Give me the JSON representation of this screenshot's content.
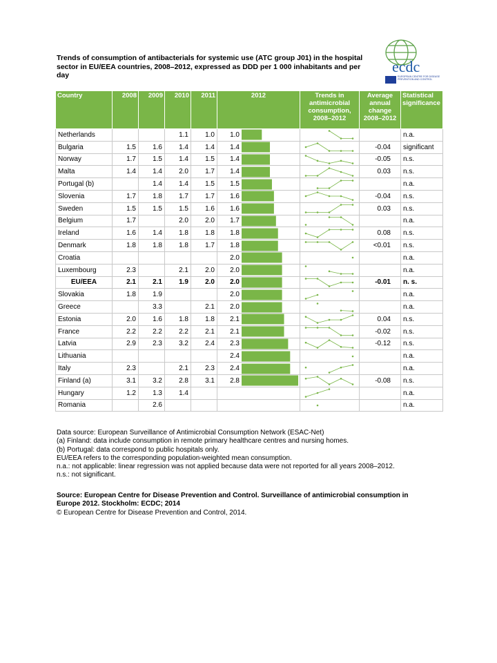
{
  "header": {
    "title": "Trends of consumption of antibacterials for systemic use (ATC group J01) in the hospital sector in EU/EEA countries, 2008–2012, expressed as DDD per 1 000 inhabitants and per day",
    "logo": {
      "name": "ecdc",
      "subtitle": "EUROPEAN CENTRE FOR DISEASE PREVENTION AND CONTROL"
    }
  },
  "table": {
    "columns": [
      "Country",
      "2008",
      "2009",
      "2010",
      "2011",
      "2012",
      "Trends in antimicrobial consumption, 2008–2012",
      "Average annual change 2008–2012",
      "Statistical significance"
    ],
    "rows": [
      {
        "country": "Netherlands",
        "values": [
          null,
          null,
          "1.1",
          "1.0",
          "1.0"
        ],
        "change": null,
        "significance": "n.a."
      },
      {
        "country": "Bulgaria",
        "values": [
          "1.5",
          "1.6",
          "1.4",
          "1.4",
          "1.4"
        ],
        "change": "-0.04",
        "significance": "significant"
      },
      {
        "country": "Norway",
        "values": [
          "1.7",
          "1.5",
          "1.4",
          "1.5",
          "1.4"
        ],
        "change": "-0.05",
        "significance": "n.s."
      },
      {
        "country": "Malta",
        "values": [
          "1.4",
          "1.4",
          "2.0",
          "1.7",
          "1.4"
        ],
        "change": "0.03",
        "significance": "n.s."
      },
      {
        "country": "Portugal (b)",
        "values": [
          null,
          "1.4",
          "1.4",
          "1.5",
          "1.5"
        ],
        "change": null,
        "significance": "n.a."
      },
      {
        "country": "Slovenia",
        "values": [
          "1.7",
          "1.8",
          "1.7",
          "1.7",
          "1.6"
        ],
        "change": "-0.04",
        "significance": "n.s."
      },
      {
        "country": "Sweden",
        "values": [
          "1.5",
          "1.5",
          "1.5",
          "1.6",
          "1.6"
        ],
        "change": "0.03",
        "significance": "n.s."
      },
      {
        "country": "Belgium",
        "values": [
          "1.7",
          null,
          "2.0",
          "2.0",
          "1.7"
        ],
        "change": null,
        "significance": "n.a."
      },
      {
        "country": "Ireland",
        "values": [
          "1.6",
          "1.4",
          "1.8",
          "1.8",
          "1.8"
        ],
        "change": "0.08",
        "significance": "n.s."
      },
      {
        "country": "Denmark",
        "values": [
          "1.8",
          "1.8",
          "1.8",
          "1.7",
          "1.8"
        ],
        "change": "<0.01",
        "significance": "n.s."
      },
      {
        "country": "Croatia",
        "values": [
          null,
          null,
          null,
          null,
          "2.0"
        ],
        "change": null,
        "significance": "n.a."
      },
      {
        "country": "Luxembourg",
        "values": [
          "2.3",
          null,
          "2.1",
          "2.0",
          "2.0"
        ],
        "change": null,
        "significance": "n.a."
      },
      {
        "country": "EU/EEA",
        "values": [
          "2.1",
          "2.1",
          "1.9",
          "2.0",
          "2.0"
        ],
        "change": "-0.01",
        "significance": "n. s.",
        "bold": true
      },
      {
        "country": "Slovakia",
        "values": [
          "1.8",
          "1.9",
          null,
          null,
          "2.0"
        ],
        "change": null,
        "significance": "n.a."
      },
      {
        "country": "Greece",
        "values": [
          null,
          "3.3",
          null,
          "2.1",
          "2.0"
        ],
        "change": null,
        "significance": "n.a."
      },
      {
        "country": "Estonia",
        "values": [
          "2.0",
          "1.6",
          "1.8",
          "1.8",
          "2.1"
        ],
        "change": "0.04",
        "significance": "n.s."
      },
      {
        "country": "France",
        "values": [
          "2.2",
          "2.2",
          "2.2",
          "2.1",
          "2.1"
        ],
        "change": "-0.02",
        "significance": "n.s."
      },
      {
        "country": "Latvia",
        "values": [
          "2.9",
          "2.3",
          "3.2",
          "2.4",
          "2.3"
        ],
        "change": "-0.12",
        "significance": "n.s."
      },
      {
        "country": "Lithuania",
        "values": [
          null,
          null,
          null,
          null,
          "2.4"
        ],
        "change": null,
        "significance": "n.a."
      },
      {
        "country": "Italy",
        "values": [
          "2.3",
          null,
          "2.1",
          "2.3",
          "2.4"
        ],
        "change": null,
        "significance": "n.a."
      },
      {
        "country": "Finland (a)",
        "values": [
          "3.1",
          "3.2",
          "2.8",
          "3.1",
          "2.8"
        ],
        "change": "-0.08",
        "significance": "n.s."
      },
      {
        "country": "Hungary",
        "values": [
          "1.2",
          "1.3",
          "1.4",
          null,
          null
        ],
        "change": null,
        "significance": "n.a."
      },
      {
        "country": "Romania",
        "values": [
          null,
          "2.6",
          null,
          null,
          null
        ],
        "change": null,
        "significance": "n.a."
      }
    ]
  },
  "notes": [
    "Data source: European Surveillance of Antimicrobial Consumption Network (ESAC-Net)",
    "(a) Finland: data include consumption in remote primary healthcare centres and nursing homes.",
    "(b) Portugal: data correspond to public hospitals only.",
    "EU/EEA refers to the corresponding population-weighted mean consumption.",
    "n.a.: not applicable: linear regression was not applied because data were not reported for all years 2008–2012.",
    "n.s.: not significant."
  ],
  "source": "Source: European Centre for Disease Prevention and Control. Surveillance of antimicrobial consumption in Europe 2012. Stockholm: ECDC; 2014",
  "copyright": "© European Centre for Disease Prevention and Control, 2014."
}
